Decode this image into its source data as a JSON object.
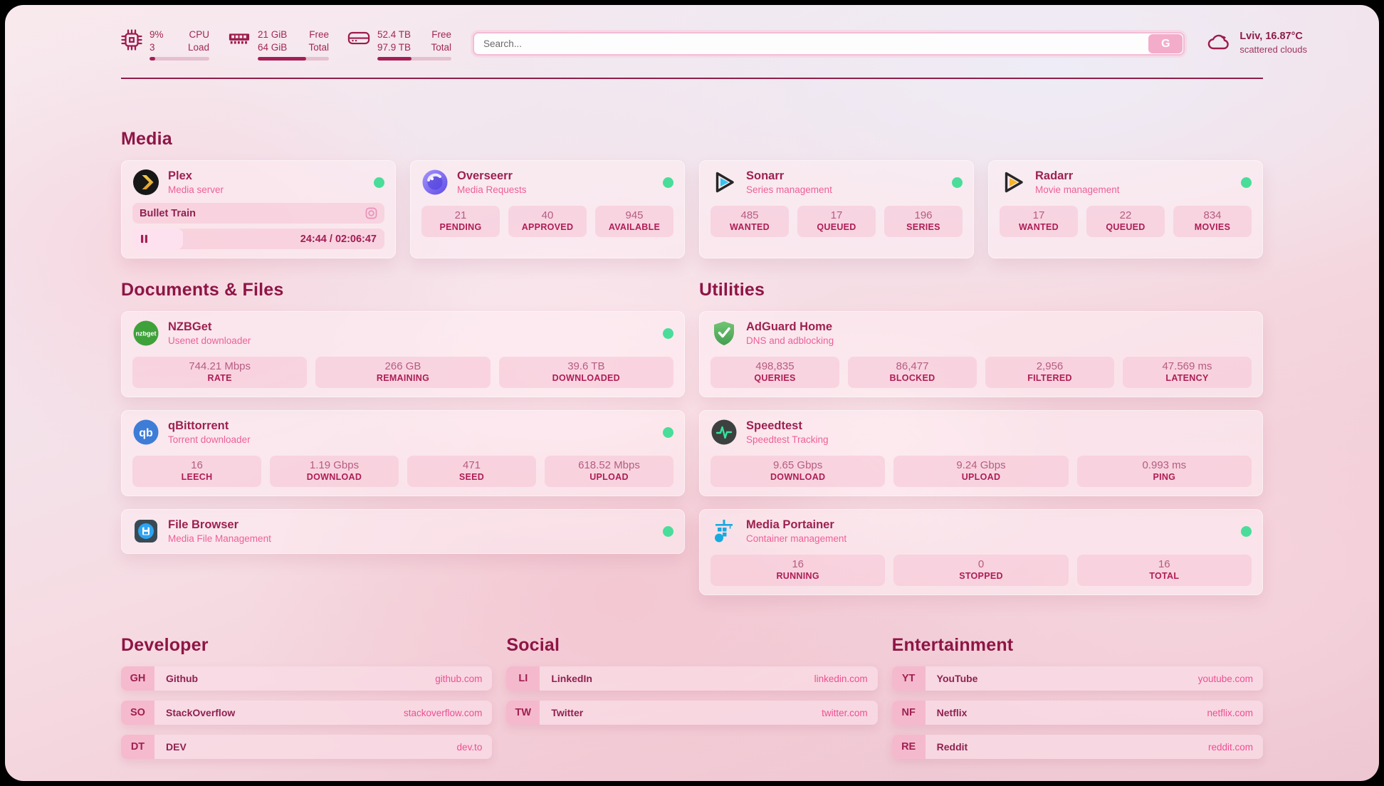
{
  "header": {
    "stats": [
      {
        "value_top": "9%",
        "value_bottom": "3",
        "label_top": "CPU",
        "label_bottom": "Load",
        "progress_pct": 10
      },
      {
        "value_top": "21 GiB",
        "value_bottom": "64 GiB",
        "label_top": "Free",
        "label_bottom": "Total",
        "progress_pct": 68
      },
      {
        "value_top": "52.4 TB",
        "value_bottom": "97.9 TB",
        "label_top": "Free",
        "label_bottom": "Total",
        "progress_pct": 46
      }
    ],
    "search": {
      "placeholder": "Search...",
      "button": "G"
    },
    "weather": {
      "line1": "Lviv, 16.87°C",
      "line2": "scattered clouds"
    }
  },
  "colors": {
    "accent": "#9c1c4c",
    "pink": "#ee5f97",
    "status_online": "#49dd99"
  },
  "sections": {
    "media": {
      "title": "Media",
      "plex": {
        "name": "Plex",
        "desc": "Media server",
        "now_playing": "Bullet Train",
        "time": "24:44 / 02:06:47",
        "progress_pct": 20
      },
      "overseerr": {
        "name": "Overseerr",
        "desc": "Media Requests",
        "stats": [
          {
            "value": "21",
            "label": "PENDING"
          },
          {
            "value": "40",
            "label": "APPROVED"
          },
          {
            "value": "945",
            "label": "AVAILABLE"
          }
        ]
      },
      "sonarr": {
        "name": "Sonarr",
        "desc": "Series management",
        "stats": [
          {
            "value": "485",
            "label": "WANTED"
          },
          {
            "value": "17",
            "label": "QUEUED"
          },
          {
            "value": "196",
            "label": "SERIES"
          }
        ]
      },
      "radarr": {
        "name": "Radarr",
        "desc": "Movie management",
        "stats": [
          {
            "value": "17",
            "label": "WANTED"
          },
          {
            "value": "22",
            "label": "QUEUED"
          },
          {
            "value": "834",
            "label": "MOVIES"
          }
        ]
      }
    },
    "documents": {
      "title": "Documents & Files",
      "nzbget": {
        "name": "NZBGet",
        "desc": "Usenet downloader",
        "stats": [
          {
            "value": "744.21 Mbps",
            "label": "RATE"
          },
          {
            "value": "266 GB",
            "label": "REMAINING"
          },
          {
            "value": "39.6 TB",
            "label": "DOWNLOADED"
          }
        ]
      },
      "qbittorrent": {
        "name": "qBittorrent",
        "desc": "Torrent downloader",
        "stats": [
          {
            "value": "16",
            "label": "LEECH"
          },
          {
            "value": "1.19 Gbps",
            "label": "DOWNLOAD"
          },
          {
            "value": "471",
            "label": "SEED"
          },
          {
            "value": "618.52 Mbps",
            "label": "UPLOAD"
          }
        ]
      },
      "filebrowser": {
        "name": "File Browser",
        "desc": "Media File Management"
      }
    },
    "utilities": {
      "title": "Utilities",
      "adguard": {
        "name": "AdGuard Home",
        "desc": "DNS and adblocking",
        "stats": [
          {
            "value": "498,835",
            "label": "QUERIES"
          },
          {
            "value": "86,477",
            "label": "BLOCKED"
          },
          {
            "value": "2,956",
            "label": "FILTERED"
          },
          {
            "value": "47.569 ms",
            "label": "LATENCY"
          }
        ]
      },
      "speedtest": {
        "name": "Speedtest",
        "desc": "Speedtest Tracking",
        "stats": [
          {
            "value": "9.65 Gbps",
            "label": "DOWNLOAD"
          },
          {
            "value": "9.24 Gbps",
            "label": "UPLOAD"
          },
          {
            "value": "0.993 ms",
            "label": "PING"
          }
        ]
      },
      "portainer": {
        "name": "Media Portainer",
        "desc": "Container management",
        "stats": [
          {
            "value": "16",
            "label": "RUNNING"
          },
          {
            "value": "0",
            "label": "STOPPED"
          },
          {
            "value": "16",
            "label": "TOTAL"
          }
        ]
      }
    },
    "links": {
      "developer": {
        "title": "Developer",
        "items": [
          {
            "abbr": "GH",
            "name": "Github",
            "url": "github.com"
          },
          {
            "abbr": "SO",
            "name": "StackOverflow",
            "url": "stackoverflow.com"
          },
          {
            "abbr": "DT",
            "name": "DEV",
            "url": "dev.to"
          }
        ]
      },
      "social": {
        "title": "Social",
        "items": [
          {
            "abbr": "LI",
            "name": "LinkedIn",
            "url": "linkedin.com"
          },
          {
            "abbr": "TW",
            "name": "Twitter",
            "url": "twitter.com"
          }
        ]
      },
      "entertainment": {
        "title": "Entertainment",
        "items": [
          {
            "abbr": "YT",
            "name": "YouTube",
            "url": "youtube.com"
          },
          {
            "abbr": "NF",
            "name": "Netflix",
            "url": "netflix.com"
          },
          {
            "abbr": "RE",
            "name": "Reddit",
            "url": "reddit.com"
          }
        ]
      }
    }
  }
}
